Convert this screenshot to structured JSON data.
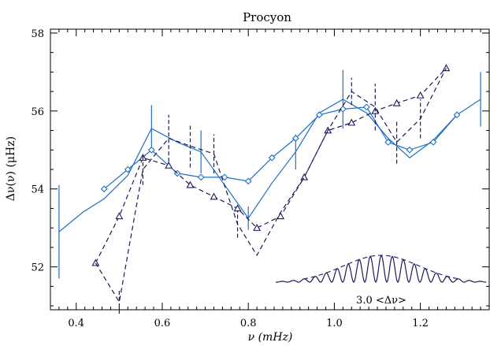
{
  "chart_data": {
    "type": "line",
    "title": "Procyon",
    "xlabel": "ν  (mHz)",
    "ylabel": "Δν(ν)  (μHz)",
    "xlim": [
      0.34,
      1.36
    ],
    "ylim": [
      50.9,
      58.1
    ],
    "x_ticks": [
      0.4,
      0.6,
      0.8,
      1.0,
      1.2
    ],
    "x_tick_labels": [
      "0.4",
      "0.6",
      "0.8",
      "1.0",
      "1.2"
    ],
    "y_ticks": [
      52,
      54,
      56,
      58
    ],
    "y_tick_labels": [
      "52",
      "54",
      "56",
      "58"
    ],
    "grid": false,
    "series": [
      {
        "style": "solid-with-errorbars",
        "color": "#1f6fc5",
        "x": [
          0.36,
          0.415,
          0.465,
          0.52,
          0.575,
          0.635,
          0.69,
          0.745,
          0.8,
          0.855,
          0.91,
          0.965,
          1.02,
          1.075,
          1.125,
          1.175,
          1.23,
          1.285,
          1.34
        ],
        "y": [
          52.9,
          53.4,
          53.75,
          54.35,
          55.55,
          55.2,
          54.95,
          54.1,
          53.25,
          54.15,
          54.95,
          55.95,
          56.3,
          55.95,
          55.3,
          54.8,
          55.25,
          55.9,
          56.3
        ],
        "err": [
          1.2,
          0.0,
          0.0,
          0.0,
          0.6,
          0.0,
          0.55,
          0.0,
          0.3,
          0.0,
          0.45,
          0.0,
          0.75,
          0.0,
          0.0,
          0.0,
          0.0,
          0.0,
          0.7
        ]
      },
      {
        "style": "solid-diamond",
        "color": "#1f6fc5",
        "x": [
          0.465,
          0.52,
          0.575,
          0.635,
          0.69,
          0.745,
          0.8,
          0.855,
          0.91,
          0.965,
          1.02,
          1.075,
          1.125,
          1.175,
          1.23,
          1.285
        ],
        "y": [
          54.0,
          54.5,
          55.0,
          54.4,
          54.3,
          54.3,
          54.2,
          54.8,
          55.3,
          55.9,
          56.05,
          56.1,
          55.2,
          55.0,
          55.2,
          55.9
        ]
      },
      {
        "style": "dashed-triangle",
        "color": "#1a1a5e",
        "x": [
          0.445,
          0.5,
          0.555,
          0.615,
          0.665,
          0.72,
          0.775,
          0.82,
          0.875,
          0.93,
          0.985,
          1.04,
          1.095,
          1.145,
          1.2,
          1.26
        ],
        "y": [
          52.1,
          53.3,
          54.8,
          54.6,
          54.1,
          53.8,
          53.5,
          53.0,
          53.3,
          54.3,
          55.5,
          55.7,
          56.0,
          56.2,
          56.4,
          57.1
        ]
      },
      {
        "style": "dashed-with-errorbars",
        "color": "#1a1a5e",
        "x": [
          0.445,
          0.5,
          0.555,
          0.615,
          0.665,
          0.72,
          0.775,
          0.82,
          0.875,
          0.93,
          0.985,
          1.04,
          1.095,
          1.145,
          1.2,
          1.26
        ],
        "y": [
          52.1,
          51.1,
          54.5,
          55.3,
          55.1,
          54.9,
          53.1,
          52.3,
          53.4,
          54.3,
          55.5,
          56.5,
          56.1,
          55.2,
          55.8,
          57.1
        ],
        "err": [
          0.0,
          0.3,
          0.4,
          0.6,
          0.55,
          0.5,
          0.35,
          0.0,
          0.0,
          0.0,
          0.0,
          0.35,
          0.6,
          0.55,
          0.5,
          0.0
        ]
      }
    ],
    "inset": {
      "label": "3.0 <Δν>",
      "color": "#1a1a5e"
    }
  }
}
